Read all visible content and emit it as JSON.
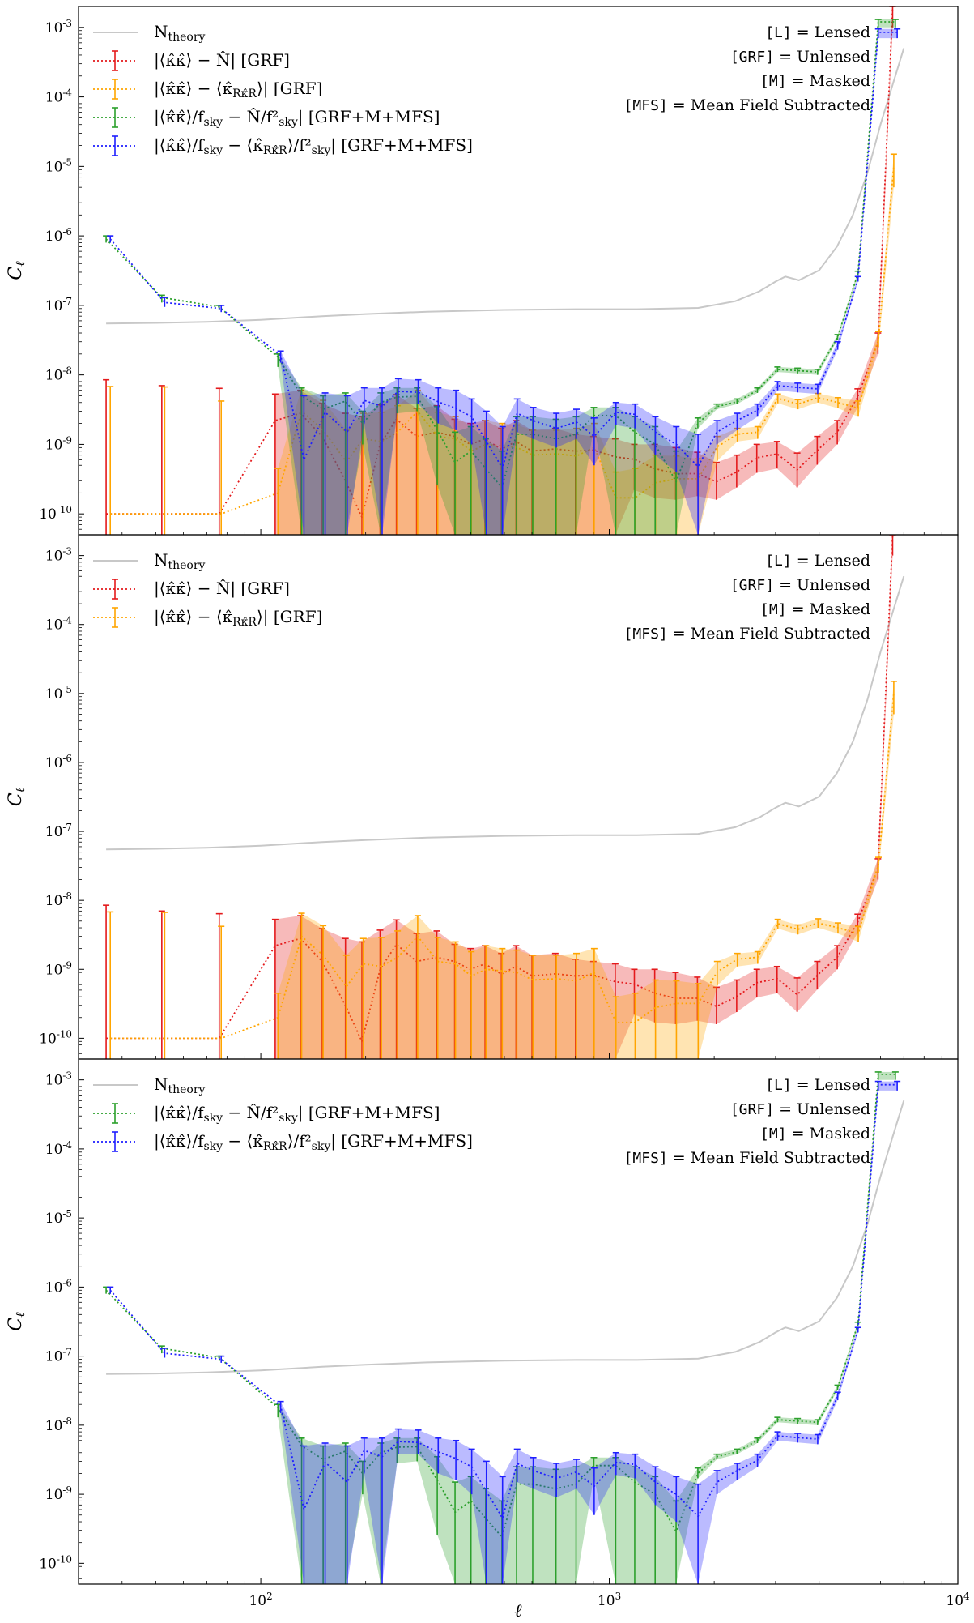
{
  "figure": {
    "xlabel": "ℓ",
    "ylabel": "C_ℓ"
  },
  "labels": {
    "ntheory": "N_theory",
    "red": "|⟨κ̂κ̂⟩ − N̂| [GRF]",
    "orange": "|⟨κ̂κ̂⟩ − ⟨κ̂_Rκ̂_R⟩| [GRF]",
    "green": "|⟨κ̂κ̂⟩/f_sky − N̂/f²_sky| [GRF+M+MFS]",
    "blue": "|⟨κ̂κ̂⟩/f_sky − ⟨κ̂_Rκ̂_R⟩/f²_sky| [GRF+M+MFS]"
  },
  "notes": [
    {
      "code": "[L]",
      "text": " = Lensed"
    },
    {
      "code": "[GRF]",
      "text": " = Unlensed"
    },
    {
      "code": "[M]",
      "text": " = Masked"
    },
    {
      "code": "[MFS]",
      "text": " = Mean Field Subtracted"
    }
  ],
  "colors": {
    "ntheory": "#c8c8c8",
    "red": "#e41a1c",
    "orange": "#ffa500",
    "green": "#2ca02c",
    "blue": "#1f1fff"
  },
  "chart_data": [
    {
      "type": "line",
      "panel": "top",
      "xscale": "log",
      "yscale": "log",
      "xlim": [
        30,
        10000
      ],
      "ylim": [
        5e-11,
        0.002
      ],
      "x_ticks": [
        "10^2",
        "10^3",
        "10^4"
      ],
      "y_ticks": [
        "10^-10",
        "10^-9",
        "10^-8",
        "10^-7",
        "10^-6",
        "10^-5",
        "10^-4",
        "10^-3"
      ],
      "xlabel": "",
      "ylabel": "C_ℓ",
      "legend": "top-left",
      "series_keys": [
        "ntheory",
        "red",
        "orange",
        "green",
        "blue"
      ]
    },
    {
      "type": "line",
      "panel": "middle",
      "xscale": "log",
      "yscale": "log",
      "xlim": [
        30,
        10000
      ],
      "ylim": [
        5e-11,
        0.002
      ],
      "x_ticks": [
        "10^2",
        "10^3",
        "10^4"
      ],
      "y_ticks": [
        "10^-10",
        "10^-9",
        "10^-8",
        "10^-7",
        "10^-6",
        "10^-5",
        "10^-4",
        "10^-3"
      ],
      "xlabel": "",
      "ylabel": "C_ℓ",
      "legend": "top-left",
      "series_keys": [
        "ntheory",
        "red",
        "orange"
      ]
    },
    {
      "type": "line",
      "panel": "bottom",
      "xscale": "log",
      "yscale": "log",
      "xlim": [
        30,
        10000
      ],
      "ylim": [
        5e-11,
        0.002
      ],
      "x_ticks": [
        "10^2",
        "10^3",
        "10^4"
      ],
      "y_ticks": [
        "10^-10",
        "10^-9",
        "10^-8",
        "10^-7",
        "10^-6",
        "10^-5",
        "10^-4",
        "10^-3"
      ],
      "xlabel": "ℓ",
      "ylabel": "C_ℓ",
      "legend": "top-left",
      "series_keys": [
        "ntheory",
        "green",
        "blue"
      ]
    }
  ],
  "series": {
    "ntheory": {
      "x": [
        36,
        50,
        70,
        100,
        150,
        200,
        300,
        500,
        800,
        1200,
        1800,
        2300,
        2700,
        3000,
        3200,
        3500,
        4000,
        4500,
        5000,
        5500,
        6000,
        6500,
        7000
      ],
      "y": [
        5.5e-08,
        5.6e-08,
        5.8e-08,
        6.2e-08,
        7e-08,
        7.5e-08,
        8.1e-08,
        8.6e-08,
        8.8e-08,
        8.8e-08,
        9.2e-08,
        1.15e-07,
        1.6e-07,
        2.2e-07,
        2.6e-07,
        2.3e-07,
        3.2e-07,
        7e-07,
        2e-06,
        8e-06,
        4e-05,
        0.00015,
        0.0005
      ]
    },
    "red": {
      "x": [
        36,
        52,
        76,
        110,
        130,
        150,
        175,
        195,
        220,
        245,
        280,
        320,
        360,
        400,
        440,
        490,
        540,
        600,
        700,
        800,
        900,
        1040,
        1180,
        1350,
        1550,
        1790,
        2030,
        2320,
        2650,
        3030,
        3460,
        3950,
        4510,
        5160,
        5900,
        6500
      ],
      "y": [
        1e-10,
        1e-10,
        1e-10,
        2.2e-09,
        2.8e-09,
        1.3e-09,
        3e-10,
        9e-11,
        1e-09,
        2.3e-09,
        1.3e-09,
        1.5e-09,
        1.3e-09,
        1e-09,
        1.2e-09,
        8.5e-10,
        1.1e-09,
        8e-10,
        8.6e-10,
        8e-10,
        8.3e-10,
        6.6e-10,
        6.1e-10,
        4.5e-10,
        3.8e-10,
        3.8e-10,
        2.9e-10,
        4e-10,
        6.4e-10,
        7.3e-10,
        4.3e-10,
        8.2e-10,
        1.5e-09,
        4.8e-09,
        3e-08,
        0.002
      ],
      "lo": [
        5e-11,
        5e-11,
        5e-11,
        5e-11,
        5e-11,
        5e-11,
        5e-11,
        5e-11,
        5e-11,
        5e-11,
        5e-11,
        5e-11,
        5e-11,
        5e-11,
        5e-11,
        5e-11,
        5e-11,
        5e-11,
        5e-11,
        5e-11,
        5e-11,
        5e-11,
        2.2e-10,
        1.7e-10,
        1.6e-10,
        1.8e-10,
        1.6e-10,
        2.4e-10,
        3.9e-10,
        4.5e-10,
        2.4e-10,
        5.1e-10,
        1e-09,
        3.4e-09,
        2e-08,
        0.001
      ],
      "hi": [
        8.5e-09,
        7e-09,
        6.4e-09,
        5.3e-09,
        6e-09,
        3.9e-09,
        2.8e-09,
        2.5e-09,
        3.7e-09,
        5.2e-09,
        3.3e-09,
        3.6e-09,
        2.3e-09,
        2e-09,
        2.2e-09,
        1.7e-09,
        2.2e-09,
        1.6e-09,
        1.7e-09,
        1.4e-09,
        1.3e-09,
        1.2e-09,
        1e-09,
        1e-09,
        9e-10,
        7.7e-10,
        5.5e-10,
        7e-10,
        1e-09,
        1.1e-09,
        7.5e-10,
        1.3e-09,
        2.2e-09,
        6.3e-09,
        4e-08,
        0.002
      ]
    },
    "orange": {
      "x": [
        37,
        53,
        77,
        112,
        131,
        151,
        176,
        197,
        222,
        247,
        282,
        322,
        362,
        402,
        443,
        493,
        543,
        604,
        705,
        805,
        905,
        1045,
        1186,
        1357,
        1558,
        1799,
        2040,
        2330,
        2665,
        3045,
        3477,
        3970,
        4530,
        5180,
        5920,
        6550
      ],
      "y": [
        1e-10,
        1e-10,
        1e-10,
        2e-10,
        3e-09,
        1.6e-09,
        5.6e-10,
        1.2e-09,
        1.1e-09,
        1.5e-09,
        3e-09,
        1.3e-09,
        1.2e-09,
        8e-10,
        1e-09,
        9.5e-10,
        9e-10,
        7e-10,
        7.3e-10,
        6.8e-10,
        9e-10,
        1.7e-10,
        1.7e-10,
        2.8e-10,
        3.2e-10,
        3.2e-10,
        9.2e-10,
        1.4e-09,
        1.5e-09,
        4.6e-09,
        3.8e-09,
        4.7e-09,
        4e-09,
        3.3e-09,
        3.3e-08,
        1e-05
      ],
      "lo": [
        5e-11,
        5e-11,
        5e-11,
        5e-11,
        5e-11,
        5e-11,
        5e-11,
        5e-11,
        5e-11,
        5e-11,
        5e-11,
        5e-11,
        5e-11,
        5e-11,
        5e-11,
        5e-11,
        5e-11,
        5e-11,
        5e-11,
        5e-11,
        5e-11,
        5e-11,
        5e-11,
        5e-11,
        5e-11,
        5e-11,
        5.8e-10,
        1.1e-09,
        1.2e-09,
        3.9e-09,
        3.2e-09,
        4e-09,
        3.3e-09,
        2.5e-09,
        2.5e-08,
        5e-06
      ],
      "hi": [
        6.8e-09,
        6.7e-09,
        4.2e-09,
        4.5e-10,
        6.5e-09,
        4.3e-09,
        1.6e-09,
        2.8e-09,
        2.9e-09,
        3.6e-09,
        6e-09,
        2.9e-09,
        2.5e-09,
        1.8e-09,
        2.2e-09,
        2e-09,
        1.9e-09,
        1.6e-09,
        1.6e-09,
        1.7e-09,
        2e-09,
        4e-10,
        4.5e-10,
        7e-10,
        6.8e-10,
        6.2e-10,
        1.3e-09,
        1.7e-09,
        1.8e-09,
        5.3e-09,
        4.4e-09,
        5.4e-09,
        4.7e-09,
        4.2e-09,
        4.2e-08,
        1.5e-05
      ]
    },
    "green": {
      "x": [
        36,
        52,
        76,
        112,
        131,
        151,
        175,
        196,
        221,
        246,
        281,
        321,
        361,
        401,
        442,
        492,
        542,
        603,
        703,
        803,
        903,
        1043,
        1183,
        1354,
        1555,
        1795,
        2035,
        2325,
        2660,
        3040,
        3470,
        3960,
        4520,
        5170,
        5910,
        6620
      ],
      "y": [
        9e-07,
        1.3e-07,
        9.5e-08,
        1.8e-08,
        5e-09,
        3.2e-09,
        4.2e-09,
        2e-09,
        4e-09,
        4.8e-09,
        4.9e-09,
        1.6e-09,
        5.5e-10,
        8e-10,
        4.5e-10,
        2.4e-10,
        1.4e-09,
        1.4e-09,
        1.2e-09,
        1.4e-09,
        2.6e-09,
        2.6e-09,
        1.5e-09,
        1e-09,
        2.9e-10,
        2e-09,
        3.5e-09,
        4.1e-09,
        6e-09,
        1.2e-08,
        1.15e-08,
        1.1e-08,
        3.5e-08,
        2.9e-07,
        0.0012,
        0.0012
      ],
      "lo": [
        8e-07,
        1.1e-07,
        8.5e-08,
        1.3e-08,
        5e-11,
        5e-11,
        5e-11,
        1e-09,
        5e-11,
        2.8e-09,
        3e-09,
        2.6e-10,
        5e-11,
        5e-11,
        5e-11,
        5e-11,
        5e-11,
        5e-11,
        5e-11,
        5e-11,
        1.8e-09,
        5e-11,
        5e-11,
        5e-11,
        5e-11,
        1.7e-09,
        3.2e-09,
        3.8e-09,
        5.5e-09,
        1.1e-08,
        1.05e-08,
        1e-08,
        3.2e-08,
        2.7e-07,
        0.001,
        0.001
      ],
      "hi": [
        1e-06,
        1.4e-07,
        1e-07,
        2e-08,
        6.5e-09,
        5e-09,
        5.5e-09,
        3e-09,
        5.5e-09,
        6.5e-09,
        6.5e-09,
        3.5e-09,
        1.5e-09,
        1.8e-09,
        1.2e-09,
        8e-10,
        2.5e-09,
        2.5e-09,
        2.3e-09,
        2.5e-09,
        3.4e-09,
        3.4e-09,
        2.5e-09,
        1.8e-09,
        8e-10,
        2.4e-09,
        3.8e-09,
        4.5e-09,
        6.5e-09,
        1.3e-08,
        1.25e-08,
        1.2e-08,
        3.8e-08,
        3.1e-07,
        0.0013,
        0.0013
      ]
    },
    "blue": {
      "x": [
        37,
        53,
        77,
        114,
        133,
        153,
        177,
        198,
        223,
        248,
        283,
        323,
        363,
        403,
        444,
        494,
        544,
        605,
        705,
        805,
        905,
        1045,
        1185,
        1356,
        1557,
        1797,
        2037,
        2327,
        2662,
        3042,
        3472,
        3962,
        4522,
        5172,
        5912,
        6700
      ],
      "y": [
        9e-07,
        1.1e-07,
        9e-08,
        1.9e-08,
        6e-10,
        2.9e-09,
        1.5e-09,
        4.3e-09,
        3.5e-09,
        5.8e-09,
        5.6e-09,
        4.1e-09,
        3.3e-09,
        2.5e-09,
        1.1e-09,
        4.5e-10,
        2.8e-09,
        2.2e-09,
        1.7e-09,
        2.1e-09,
        1.3e-09,
        2.9e-09,
        2.7e-09,
        1.5e-09,
        1e-09,
        4.8e-10,
        1.5e-09,
        2.2e-09,
        3.1e-09,
        7e-09,
        6.6e-09,
        6.3e-09,
        2.6e-08,
        2.4e-07,
        0.00085,
        0.00085
      ],
      "lo": [
        8e-07,
        9.5e-08,
        8e-08,
        1.5e-08,
        5e-11,
        5e-11,
        5e-11,
        2e-09,
        5e-11,
        3.8e-09,
        3.8e-09,
        2e-09,
        1.6e-09,
        1e-09,
        5e-11,
        5e-11,
        1.5e-09,
        1.2e-09,
        9e-10,
        1.2e-09,
        5e-10,
        1.9e-09,
        1.7e-09,
        7e-10,
        4e-10,
        5e-11,
        1e-09,
        1.6e-09,
        2.5e-09,
        6e-09,
        5.6e-09,
        5.3e-09,
        2.3e-08,
        2.2e-07,
        0.0007,
        0.0007
      ],
      "hi": [
        1e-06,
        1.3e-07,
        1e-07,
        2.2e-08,
        5e-09,
        5.5e-09,
        5e-09,
        6.5e-09,
        6.5e-09,
        8.8e-09,
        8.5e-09,
        6.5e-09,
        6e-09,
        4.5e-09,
        3e-09,
        1.8e-09,
        4.5e-09,
        3.4e-09,
        2.8e-09,
        3.2e-09,
        2.4e-09,
        4e-09,
        3.8e-09,
        2.5e-09,
        1.8e-09,
        1.4e-09,
        2.2e-09,
        2.8e-09,
        3.8e-09,
        8e-09,
        7.6e-09,
        7.3e-09,
        3e-08,
        2.6e-07,
        0.00095,
        0.00095
      ]
    }
  }
}
